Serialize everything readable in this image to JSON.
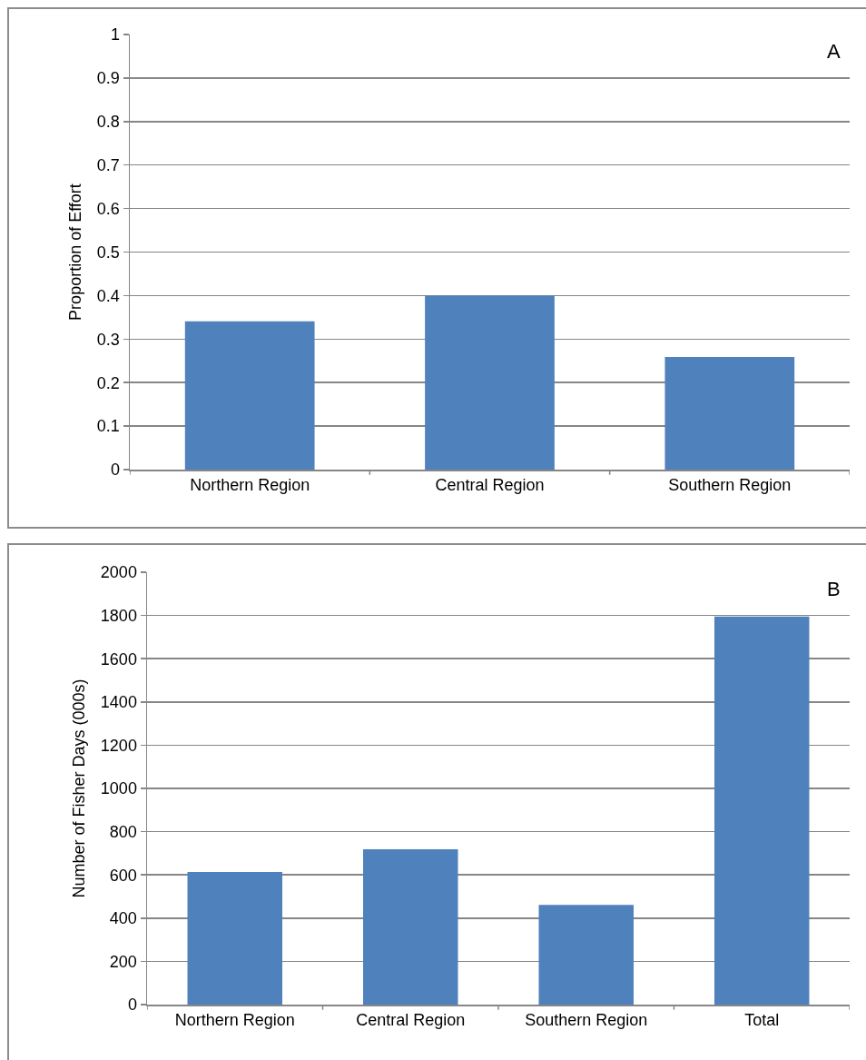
{
  "chart_data": [
    {
      "type": "bar",
      "categories": [
        "Northern Region",
        "Central Region",
        "Southern Region"
      ],
      "values": [
        0.341,
        0.4,
        0.259
      ],
      "color": "#4f81bd",
      "ylabel": "Proportion of Effort",
      "ylim": [
        0,
        1
      ],
      "yticks": [
        0,
        0.1,
        0.2,
        0.3,
        0.4,
        0.5,
        0.6,
        0.7,
        0.8,
        0.9,
        1
      ],
      "grid": "y",
      "annotations": [
        "A"
      ]
    },
    {
      "type": "bar",
      "categories": [
        "Northern Region",
        "Central Region",
        "Southern Region",
        "Total"
      ],
      "values": [
        613,
        718,
        461,
        1795
      ],
      "color": "#4f81bd",
      "ylabel": "Number of Fisher Days (000s)",
      "ylim": [
        0,
        2000
      ],
      "yticks": [
        0,
        200,
        400,
        600,
        800,
        1000,
        1200,
        1400,
        1600,
        1800,
        2000
      ],
      "grid": "y",
      "annotations": [
        "B"
      ]
    }
  ]
}
